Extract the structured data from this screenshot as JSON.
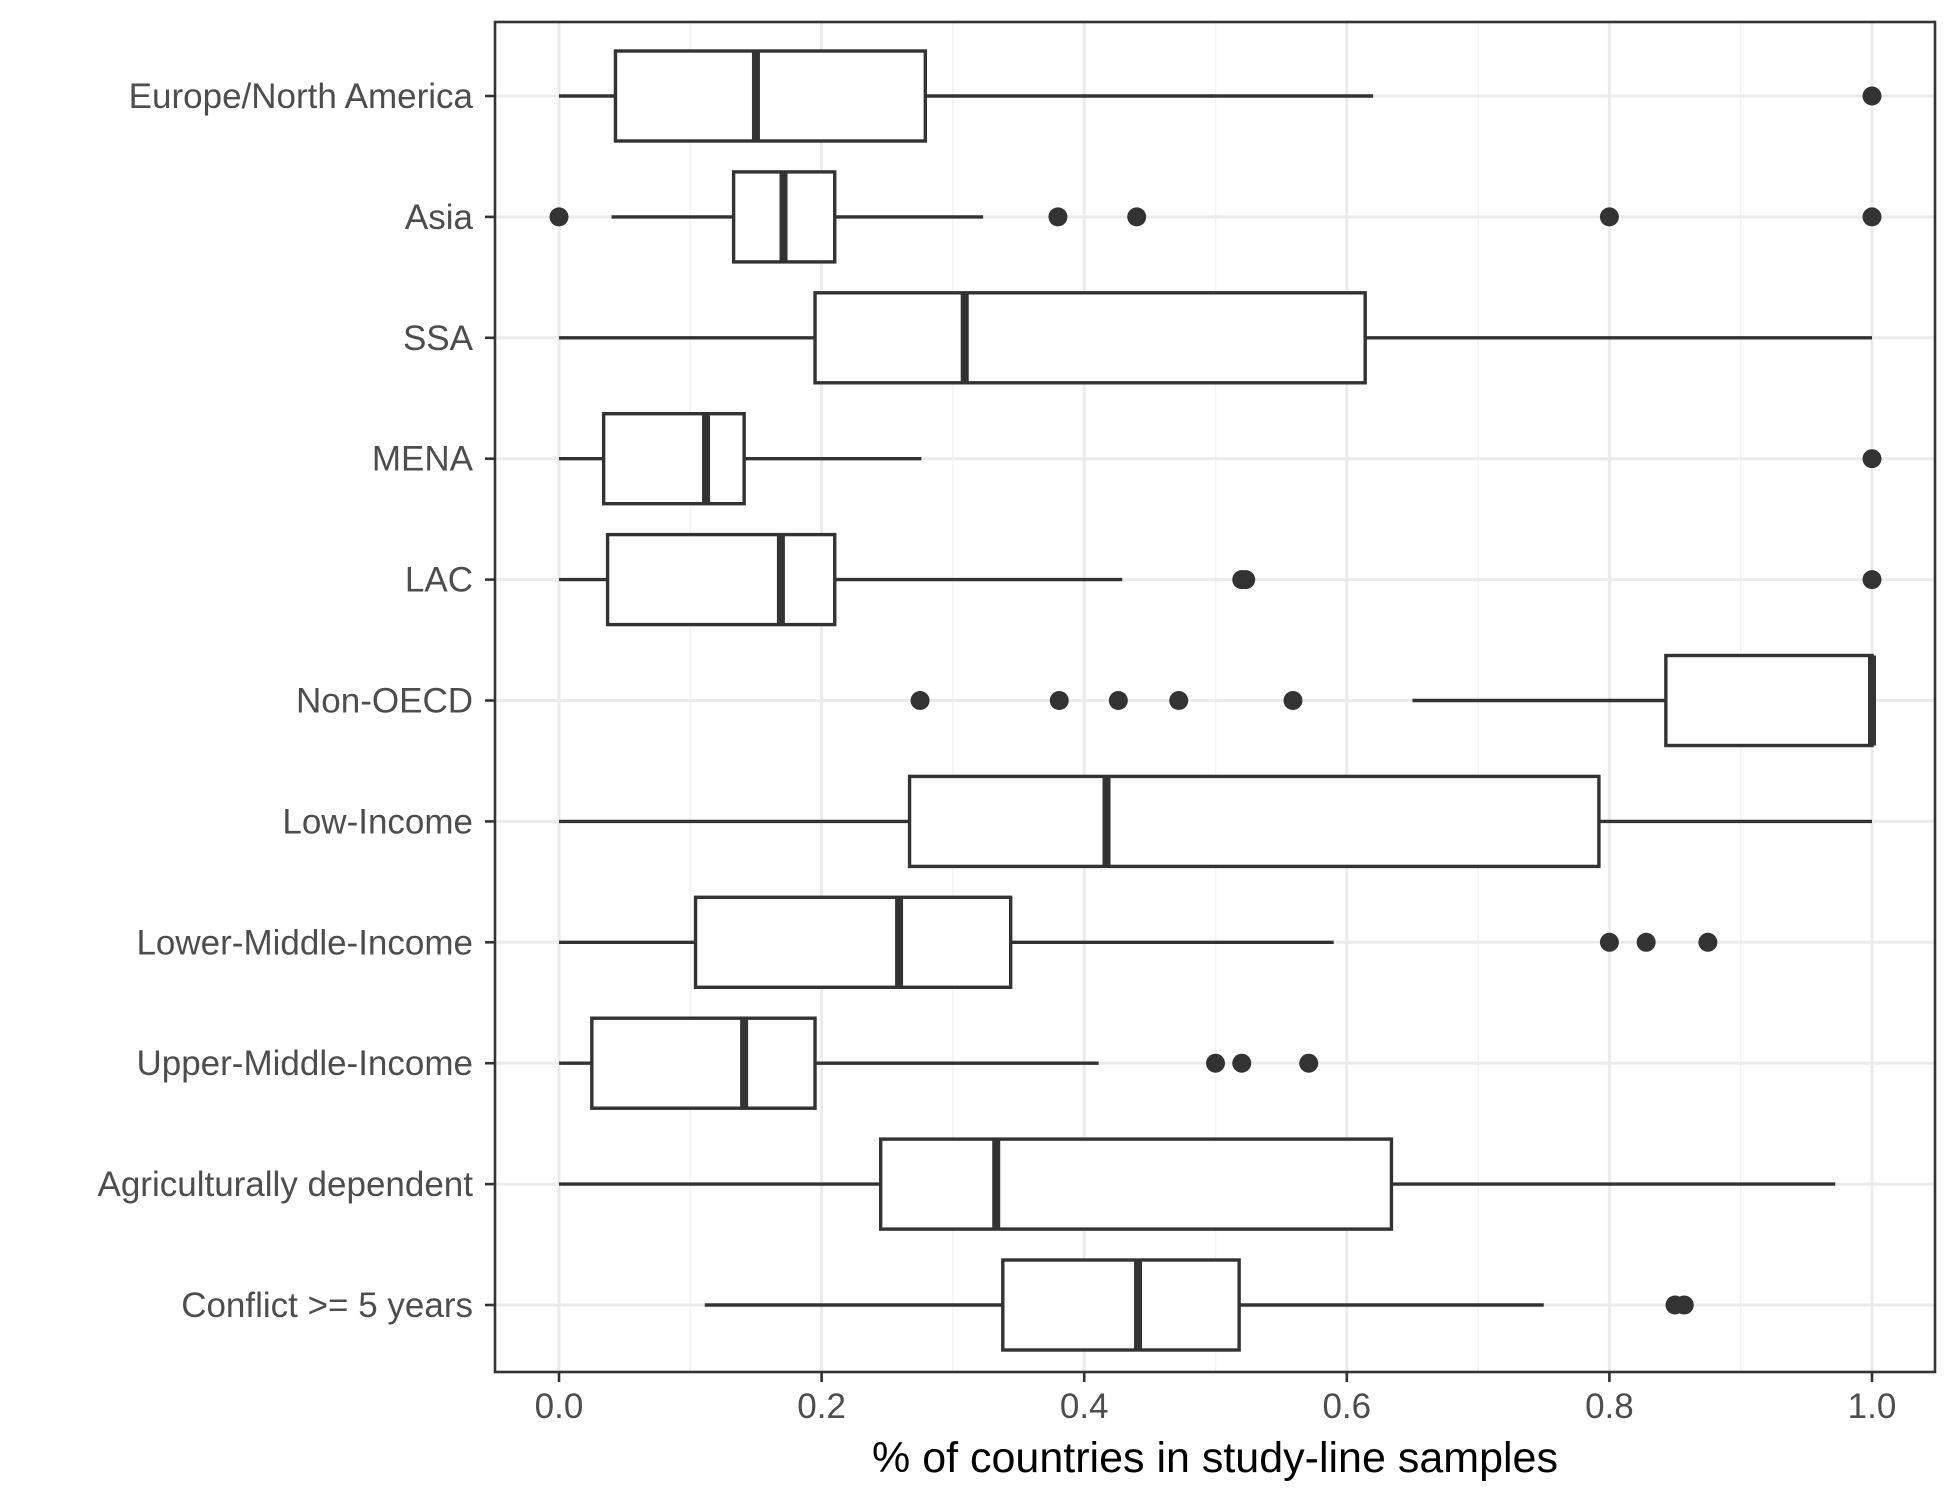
{
  "colors": {
    "box_line": "#333333",
    "box_fill": "#ffffff",
    "grid": "#ebebeb",
    "label_text": "#4d4d4d",
    "title_text": "#000000"
  },
  "chart_data": {
    "type": "boxplot",
    "orientation": "horizontal",
    "title": "",
    "xlabel": "% of countries in study-line samples",
    "ylabel": "",
    "xlim": [
      -0.05,
      1.05
    ],
    "xticks": [
      0.0,
      0.2,
      0.4,
      0.6,
      0.8,
      1.0
    ],
    "xtick_labels": [
      "0.0",
      "0.2",
      "0.4",
      "0.6",
      "0.8",
      "1.0"
    ],
    "grid": true,
    "legend": "none",
    "categories": [
      "Europe/North America",
      "Asia",
      "SSA",
      "MENA",
      "LAC",
      "Non-OECD",
      "Low-Income",
      "Lower-Middle-Income",
      "Upper-Middle-Income",
      "Agriculturally dependent",
      "Conflict >= 5 years"
    ],
    "boxes": [
      {
        "category": "Europe/North America",
        "whisker_low": 0.0,
        "q1": 0.043,
        "median": 0.15,
        "q3": 0.279,
        "whisker_high": 0.62,
        "outliers": [
          1.0
        ]
      },
      {
        "category": "Asia",
        "whisker_low": 0.04,
        "q1": 0.133,
        "median": 0.171,
        "q3": 0.21,
        "whisker_high": 0.323,
        "outliers": [
          0.0,
          0.38,
          0.44,
          0.8,
          1.0
        ]
      },
      {
        "category": "SSA",
        "whisker_low": 0.0,
        "q1": 0.195,
        "median": 0.309,
        "q3": 0.614,
        "whisker_high": 1.0,
        "outliers": []
      },
      {
        "category": "MENA",
        "whisker_low": 0.0,
        "q1": 0.034,
        "median": 0.112,
        "q3": 0.141,
        "whisker_high": 0.276,
        "outliers": [
          1.0
        ]
      },
      {
        "category": "LAC",
        "whisker_low": 0.0,
        "q1": 0.037,
        "median": 0.169,
        "q3": 0.21,
        "whisker_high": 0.429,
        "outliers": [
          0.52,
          0.523,
          1.0
        ]
      },
      {
        "category": "Non-OECD",
        "whisker_low": 0.65,
        "q1": 0.843,
        "median": 1.0,
        "q3": 1.0,
        "whisker_high": 1.0,
        "outliers": [
          0.275,
          0.381,
          0.426,
          0.472,
          0.559
        ]
      },
      {
        "category": "Low-Income",
        "whisker_low": 0.0,
        "q1": 0.267,
        "median": 0.417,
        "q3": 0.792,
        "whisker_high": 1.0,
        "outliers": []
      },
      {
        "category": "Lower-Middle-Income",
        "whisker_low": 0.0,
        "q1": 0.104,
        "median": 0.259,
        "q3": 0.344,
        "whisker_high": 0.59,
        "outliers": [
          0.8,
          0.828,
          0.875
        ]
      },
      {
        "category": "Upper-Middle-Income",
        "whisker_low": 0.0,
        "q1": 0.025,
        "median": 0.141,
        "q3": 0.195,
        "whisker_high": 0.411,
        "outliers": [
          0.5,
          0.52,
          0.571
        ]
      },
      {
        "category": "Agriculturally dependent",
        "whisker_low": 0.0,
        "q1": 0.245,
        "median": 0.333,
        "q3": 0.634,
        "whisker_high": 0.972,
        "outliers": []
      },
      {
        "category": "Conflict >= 5 years",
        "whisker_low": 0.111,
        "q1": 0.338,
        "median": 0.441,
        "q3": 0.518,
        "whisker_high": 0.75,
        "outliers": [
          0.85,
          0.857
        ]
      }
    ]
  }
}
